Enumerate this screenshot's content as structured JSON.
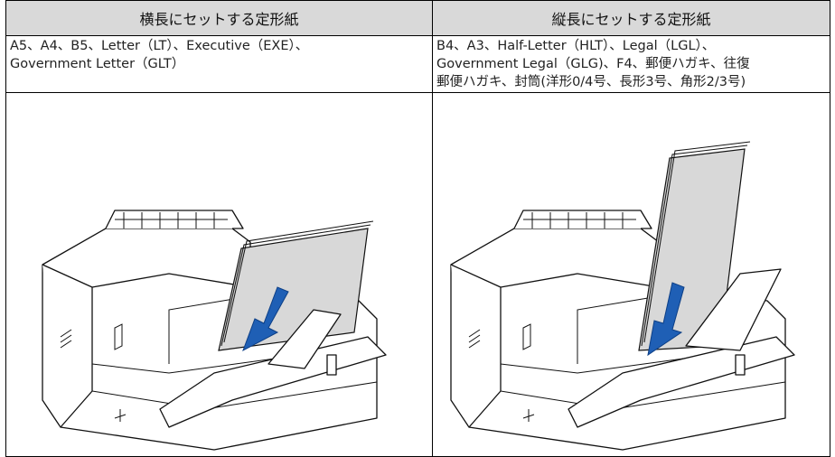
{
  "table": {
    "header": [
      "横長にセットする定形紙",
      "縦長にセットする定形紙"
    ],
    "rows": [
      [
        [
          "A5、A4、B5、Letter（LT）、Executive（EXE）、",
          "Government Letter（GLT）"
        ],
        [
          "B4、A3、Half-Letter（HLT）、Legal（LGL）、",
          "Government Legal（GLG)、F4、郵便ハガキ、往復",
          "郵便ハガキ、封筒(洋形0/4号、長形3号、角形2/3号)"
        ]
      ]
    ]
  }
}
